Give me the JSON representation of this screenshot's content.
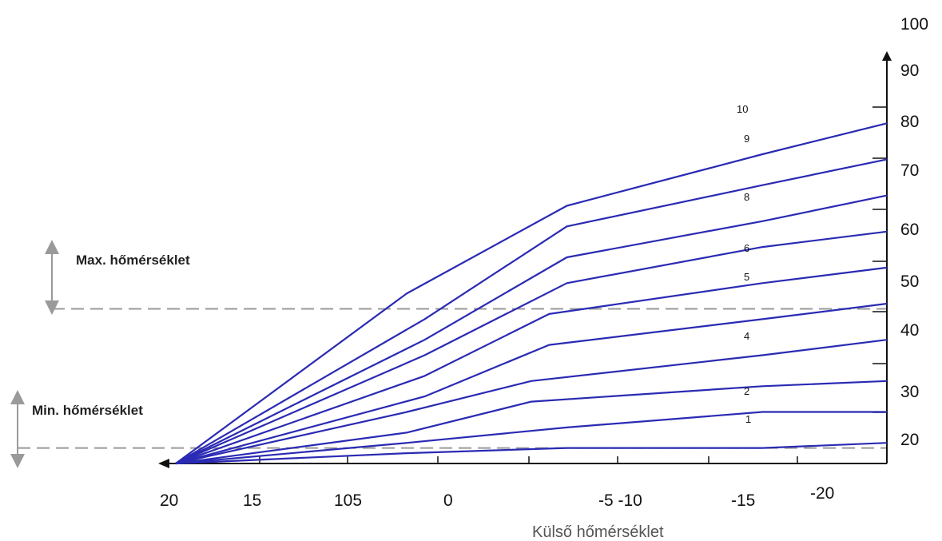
{
  "chart_data": {
    "type": "line",
    "xlabel": "Külső hőmérséklet",
    "ylabel": "",
    "x_axis_direction": "decreasing-right",
    "x_tick_labels": [
      "20",
      "15",
      "105",
      "0",
      "-5 -10",
      "-15",
      "-20"
    ],
    "y_tick_labels": [
      "100",
      "90",
      "80",
      "70",
      "60",
      "50",
      "40",
      "30",
      "20"
    ],
    "curve_labels": [
      "10",
      "9",
      "8",
      "6",
      "5",
      "4",
      "2",
      "1"
    ],
    "limits": {
      "max": {
        "label": "Max. hőmérséklet",
        "value": 50
      },
      "min": {
        "label": "Min. hőmérséklet",
        "value": 23
      }
    },
    "line_color": "#2a2ab4",
    "limit_line_color": "#9a9a9a",
    "series": [
      {
        "x": [
          20,
          7,
          -2,
          -13,
          -20
        ],
        "y": [
          20,
          53,
          70,
          80,
          86
        ]
      },
      {
        "x": [
          20,
          6,
          -2,
          -13,
          -20
        ],
        "y": [
          20,
          48,
          66,
          74,
          79
        ]
      },
      {
        "x": [
          20,
          6,
          -2,
          -13,
          -20
        ],
        "y": [
          20,
          44,
          60,
          67,
          72
        ]
      },
      {
        "x": [
          20,
          6,
          -2,
          -13,
          -20
        ],
        "y": [
          20,
          41,
          55,
          62,
          65
        ]
      },
      {
        "x": [
          20,
          6,
          -1,
          -13,
          -20
        ],
        "y": [
          20,
          37,
          49,
          55,
          58
        ]
      },
      {
        "x": [
          20,
          6,
          -1,
          -13,
          -20
        ],
        "y": [
          20,
          33,
          43,
          48,
          51
        ]
      },
      {
        "x": [
          20,
          7,
          0,
          -13,
          -20
        ],
        "y": [
          20,
          30,
          36,
          41,
          44
        ]
      },
      {
        "x": [
          20,
          7,
          0,
          -13,
          -20
        ],
        "y": [
          20,
          26,
          32,
          35,
          36
        ]
      },
      {
        "x": [
          20,
          7,
          -2,
          -13,
          -20
        ],
        "y": [
          20,
          24,
          27,
          30,
          30
        ]
      },
      {
        "x": [
          20,
          7,
          -2,
          -13,
          -20
        ],
        "y": [
          20,
          22,
          23,
          23,
          24
        ]
      }
    ]
  }
}
